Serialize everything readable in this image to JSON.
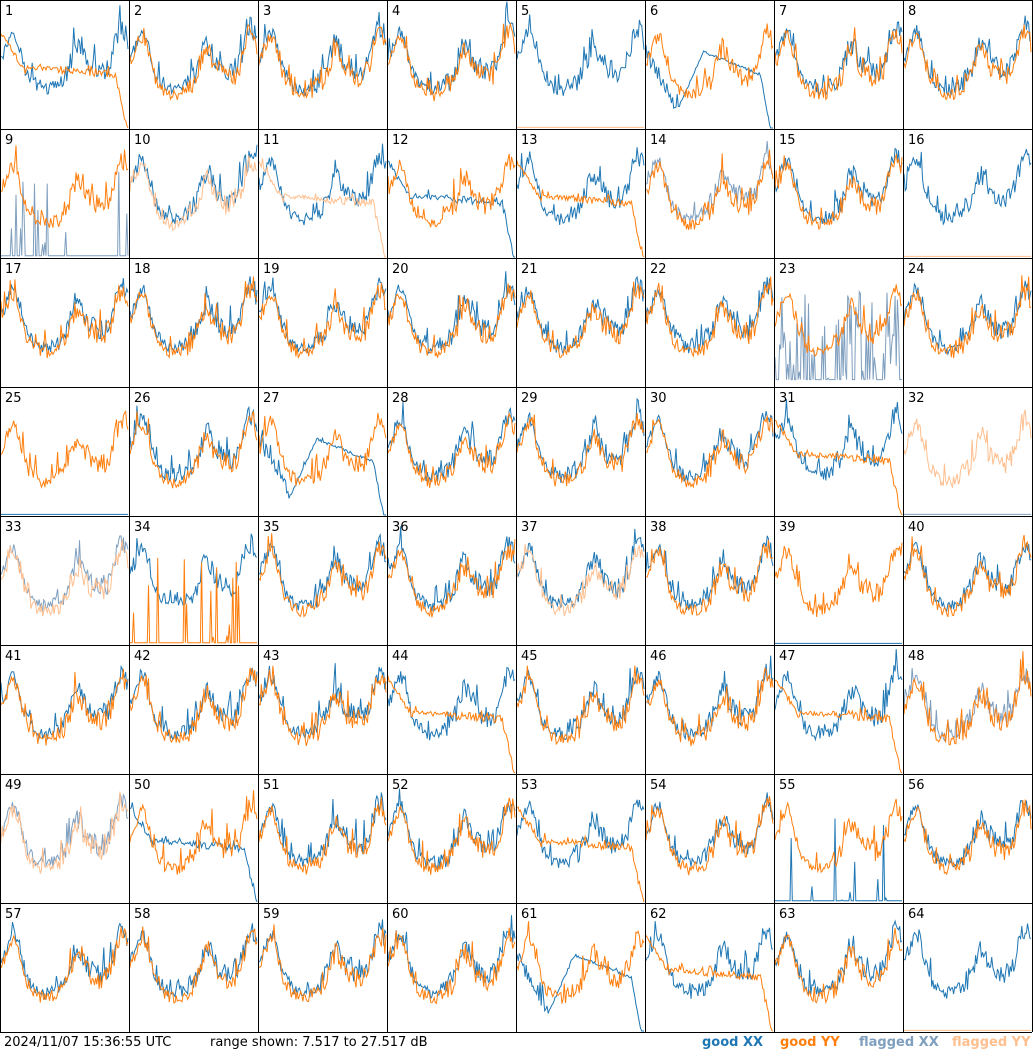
{
  "footer": {
    "timestamp": "2024/11/07 15:36:55 UTC",
    "range": "range shown: 7.517 to 27.517 dB"
  },
  "legend": [
    {
      "label": "good XX",
      "color": "#1f77b4"
    },
    {
      "label": "good YY",
      "color": "#ff7f0e"
    },
    {
      "label": "flagged XX",
      "color": "#7f9fbf"
    },
    {
      "label": "flagged YY",
      "color": "#ffbf8f"
    }
  ],
  "chart_data": {
    "type": "line",
    "description_units": "dB",
    "ylim": [
      7.517,
      27.517
    ],
    "grid_rows": 8,
    "grid_cols": 8,
    "panels": [
      {
        "id": "1",
        "xx": "good",
        "yy": "good",
        "yy_shape": "droop"
      },
      {
        "id": "2",
        "xx": "good",
        "yy": "good"
      },
      {
        "id": "3",
        "xx": "good",
        "yy": "good"
      },
      {
        "id": "4",
        "xx": "good",
        "yy": "good"
      },
      {
        "id": "5",
        "xx": "good",
        "yy": "flagged",
        "yy_shape": "flat-low"
      },
      {
        "id": "6",
        "xx": "good",
        "yy": "good",
        "xx_shape": "bowl-droop"
      },
      {
        "id": "7",
        "xx": "good",
        "yy": "good"
      },
      {
        "id": "8",
        "xx": "good",
        "yy": "good"
      },
      {
        "id": "9",
        "xx": "flagged",
        "yy": "good",
        "xx_shape": "spikes-low"
      },
      {
        "id": "10",
        "xx": "good",
        "yy": "flagged"
      },
      {
        "id": "11",
        "xx": "good",
        "yy": "flagged",
        "yy_shape": "droop"
      },
      {
        "id": "12",
        "xx": "good",
        "yy": "good",
        "xx_shape": "droop"
      },
      {
        "id": "13",
        "xx": "good",
        "yy": "good",
        "yy_shape": "droop"
      },
      {
        "id": "14",
        "xx": "flagged",
        "yy": "good"
      },
      {
        "id": "15",
        "xx": "good",
        "yy": "good"
      },
      {
        "id": "16",
        "xx": "good",
        "yy": "flagged",
        "yy_shape": "flat-low"
      },
      {
        "id": "17",
        "xx": "good",
        "yy": "good"
      },
      {
        "id": "18",
        "xx": "good",
        "yy": "good"
      },
      {
        "id": "19",
        "xx": "good",
        "yy": "good"
      },
      {
        "id": "20",
        "xx": "good",
        "yy": "good"
      },
      {
        "id": "21",
        "xx": "good",
        "yy": "good"
      },
      {
        "id": "22",
        "xx": "good",
        "yy": "good"
      },
      {
        "id": "23",
        "xx": "flagged",
        "yy": "good",
        "xx_shape": "spikes-mid"
      },
      {
        "id": "24",
        "xx": "good",
        "yy": "good"
      },
      {
        "id": "25",
        "xx": "good",
        "yy": "good",
        "xx_shape": "flat-low"
      },
      {
        "id": "26",
        "xx": "good",
        "yy": "good"
      },
      {
        "id": "27",
        "xx": "good",
        "yy": "good",
        "xx_shape": "bowl-droop"
      },
      {
        "id": "28",
        "xx": "good",
        "yy": "good"
      },
      {
        "id": "29",
        "xx": "good",
        "yy": "good"
      },
      {
        "id": "30",
        "xx": "good",
        "yy": "good"
      },
      {
        "id": "31",
        "xx": "good",
        "yy": "good",
        "yy_shape": "droop"
      },
      {
        "id": "32",
        "xx": "flagged",
        "yy": "flagged",
        "xx_shape": "flat-low"
      },
      {
        "id": "33",
        "xx": "flagged",
        "yy": "flagged"
      },
      {
        "id": "34",
        "xx": "good",
        "yy": "good",
        "yy_shape": "spikes-low"
      },
      {
        "id": "35",
        "xx": "good",
        "yy": "good"
      },
      {
        "id": "36",
        "xx": "good",
        "yy": "good"
      },
      {
        "id": "37",
        "xx": "good",
        "yy": "flagged"
      },
      {
        "id": "38",
        "xx": "good",
        "yy": "good"
      },
      {
        "id": "39",
        "xx": "good",
        "yy": "good",
        "xx_shape": "flat-low"
      },
      {
        "id": "40",
        "xx": "good",
        "yy": "good"
      },
      {
        "id": "41",
        "xx": "good",
        "yy": "good"
      },
      {
        "id": "42",
        "xx": "good",
        "yy": "good"
      },
      {
        "id": "43",
        "xx": "good",
        "yy": "good"
      },
      {
        "id": "44",
        "xx": "good",
        "yy": "good",
        "yy_shape": "droop"
      },
      {
        "id": "45",
        "xx": "good",
        "yy": "good"
      },
      {
        "id": "46",
        "xx": "good",
        "yy": "good"
      },
      {
        "id": "47",
        "xx": "good",
        "yy": "good",
        "yy_shape": "droop"
      },
      {
        "id": "48",
        "xx": "flagged",
        "yy": "good"
      },
      {
        "id": "49",
        "xx": "flagged",
        "yy": "flagged"
      },
      {
        "id": "50",
        "xx": "good",
        "yy": "good",
        "xx_shape": "droop"
      },
      {
        "id": "51",
        "xx": "good",
        "yy": "good"
      },
      {
        "id": "52",
        "xx": "good",
        "yy": "good"
      },
      {
        "id": "53",
        "xx": "good",
        "yy": "good",
        "yy_shape": "droop"
      },
      {
        "id": "54",
        "xx": "good",
        "yy": "good"
      },
      {
        "id": "55",
        "xx": "good",
        "yy": "good",
        "xx_shape": "spikes-low"
      },
      {
        "id": "56",
        "xx": "good",
        "yy": "good"
      },
      {
        "id": "57",
        "xx": "good",
        "yy": "good"
      },
      {
        "id": "58",
        "xx": "good",
        "yy": "good"
      },
      {
        "id": "59",
        "xx": "good",
        "yy": "good"
      },
      {
        "id": "60",
        "xx": "good",
        "yy": "good"
      },
      {
        "id": "61",
        "xx": "good",
        "yy": "good",
        "xx_shape": "bowl-droop"
      },
      {
        "id": "62",
        "xx": "good",
        "yy": "good",
        "yy_shape": "droop"
      },
      {
        "id": "63",
        "xx": "good",
        "yy": "good"
      },
      {
        "id": "64",
        "xx": "good",
        "yy": "flagged",
        "yy_shape": "flat-low"
      }
    ]
  }
}
